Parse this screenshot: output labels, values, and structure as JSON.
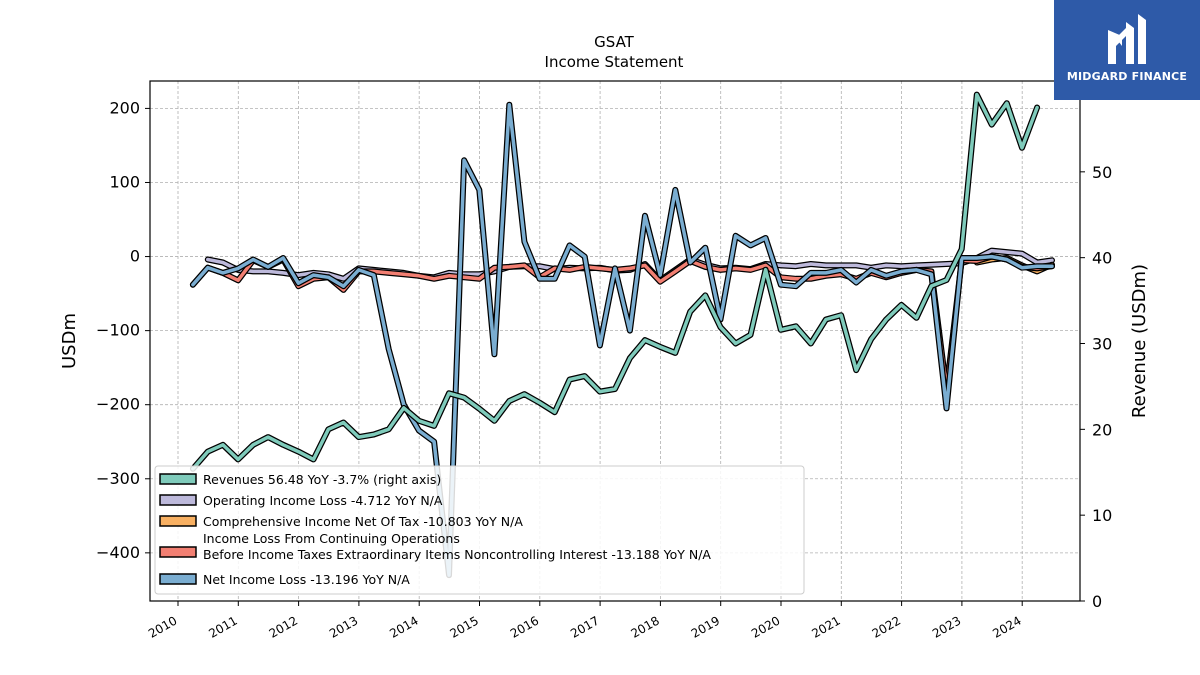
{
  "logo": {
    "text": "MIDGARD FINANCE",
    "bg": "#2e5aa8"
  },
  "chart_data": {
    "type": "line",
    "title": "GSAT",
    "subtitle": "Income Statement",
    "ylabel": "USDm",
    "ylabel_right": "Revenue (USDm)",
    "ylim": [
      -465,
      237
    ],
    "ylim_right": [
      0,
      60
    ],
    "x_ticks": [
      "2010",
      "2011",
      "2012",
      "2013",
      "2014",
      "2015",
      "2016",
      "2017",
      "2018",
      "2019",
      "2020",
      "2021",
      "2022",
      "2023",
      "2024"
    ],
    "y_ticks": [
      -400,
      -300,
      -200,
      -100,
      0,
      100,
      200
    ],
    "y_ticks_right": [
      0,
      10,
      20,
      30,
      40,
      50
    ],
    "grid": true,
    "legend_position": "lower-left",
    "series": [
      {
        "name": "Revenues  56.48 YoY -3.7% (right axis)",
        "axis": "right",
        "color": "#7fcbbb",
        "points": [
          [
            "2010-03-31",
            15.4
          ],
          [
            "2010-06-30",
            17.4
          ],
          [
            "2010-09-30",
            18.2
          ],
          [
            "2010-12-31",
            16.5
          ],
          [
            "2011-03-31",
            18.2
          ],
          [
            "2011-06-30",
            19.1
          ],
          [
            "2011-09-30",
            18.2
          ],
          [
            "2011-12-31",
            17.4
          ],
          [
            "2012-03-31",
            16.5
          ],
          [
            "2012-06-30",
            20.0
          ],
          [
            "2012-09-30",
            20.8
          ],
          [
            "2012-12-31",
            19.1
          ],
          [
            "2013-03-31",
            19.4
          ],
          [
            "2013-06-30",
            20.0
          ],
          [
            "2013-09-30",
            22.5
          ],
          [
            "2013-12-31",
            21.0
          ],
          [
            "2014-03-31",
            20.4
          ],
          [
            "2014-06-30",
            24.2
          ],
          [
            "2014-09-30",
            23.7
          ],
          [
            "2014-12-31",
            22.4
          ],
          [
            "2015-03-31",
            21.0
          ],
          [
            "2015-06-30",
            23.3
          ],
          [
            "2015-09-30",
            24.1
          ],
          [
            "2015-12-31",
            23.1
          ],
          [
            "2016-03-31",
            22.0
          ],
          [
            "2016-06-30",
            25.8
          ],
          [
            "2016-09-30",
            26.2
          ],
          [
            "2016-12-31",
            24.4
          ],
          [
            "2017-03-31",
            24.7
          ],
          [
            "2017-06-30",
            28.3
          ],
          [
            "2017-09-30",
            30.4
          ],
          [
            "2017-12-31",
            29.6
          ],
          [
            "2018-03-31",
            28.9
          ],
          [
            "2018-06-30",
            33.7
          ],
          [
            "2018-09-30",
            35.6
          ],
          [
            "2018-12-31",
            31.9
          ],
          [
            "2019-03-31",
            30.0
          ],
          [
            "2019-06-30",
            31.0
          ],
          [
            "2019-09-30",
            38.6
          ],
          [
            "2019-12-31",
            31.6
          ],
          [
            "2020-03-31",
            32.0
          ],
          [
            "2020-06-30",
            30.0
          ],
          [
            "2020-09-30",
            32.8
          ],
          [
            "2020-12-31",
            33.3
          ],
          [
            "2021-03-31",
            26.9
          ],
          [
            "2021-06-30",
            30.5
          ],
          [
            "2021-09-30",
            32.8
          ],
          [
            "2021-12-31",
            34.5
          ],
          [
            "2022-03-31",
            33.0
          ],
          [
            "2022-06-30",
            36.7
          ],
          [
            "2022-09-30",
            37.4
          ],
          [
            "2022-12-31",
            41.0
          ],
          [
            "2023-03-31",
            59.0
          ],
          [
            "2023-06-30",
            55.5
          ],
          [
            "2023-09-30",
            58.0
          ],
          [
            "2023-12-31",
            52.8
          ],
          [
            "2024-03-31",
            57.5
          ]
        ]
      },
      {
        "name": "Operating Income Loss  -4.712 YoY N/A",
        "axis": "left",
        "color": "#bdb9db",
        "points": [
          [
            "2010-06-30",
            -4
          ],
          [
            "2010-09-30",
            -8
          ],
          [
            "2010-12-31",
            -18
          ],
          [
            "2011-03-31",
            -20
          ],
          [
            "2011-06-30",
            -20
          ],
          [
            "2011-09-30",
            -22
          ],
          [
            "2011-12-31",
            -25
          ],
          [
            "2012-03-31",
            -22
          ],
          [
            "2012-06-30",
            -24
          ],
          [
            "2012-09-30",
            -30
          ],
          [
            "2012-12-31",
            -16
          ],
          [
            "2013-03-31",
            -18
          ],
          [
            "2013-06-30",
            -20
          ],
          [
            "2013-09-30",
            -22
          ],
          [
            "2013-12-31",
            -26
          ],
          [
            "2014-03-31",
            -28
          ],
          [
            "2014-06-30",
            -22
          ],
          [
            "2014-09-30",
            -24
          ],
          [
            "2014-12-31",
            -24
          ],
          [
            "2015-03-31",
            -20
          ],
          [
            "2015-06-30",
            -14
          ],
          [
            "2015-09-30",
            -13
          ],
          [
            "2015-12-31",
            -13
          ],
          [
            "2016-03-31",
            -17
          ],
          [
            "2016-06-30",
            -15
          ],
          [
            "2016-09-30",
            -16
          ],
          [
            "2016-12-31",
            -15
          ],
          [
            "2017-03-31",
            -19
          ],
          [
            "2017-06-30",
            -18
          ],
          [
            "2017-09-30",
            -10
          ],
          [
            "2017-12-31",
            -32
          ],
          [
            "2018-03-31",
            -18
          ],
          [
            "2018-06-30",
            -4
          ],
          [
            "2018-09-30",
            -11
          ],
          [
            "2018-12-31",
            -16
          ],
          [
            "2019-03-31",
            -15
          ],
          [
            "2019-06-30",
            -17
          ],
          [
            "2019-09-30",
            -10
          ],
          [
            "2019-12-31",
            -12
          ],
          [
            "2020-03-31",
            -13
          ],
          [
            "2020-06-30",
            -10
          ],
          [
            "2020-09-30",
            -12
          ],
          [
            "2020-12-31",
            -12
          ],
          [
            "2021-03-31",
            -12
          ],
          [
            "2021-06-30",
            -15
          ],
          [
            "2021-09-30",
            -12
          ],
          [
            "2021-12-31",
            -13
          ],
          [
            "2022-03-31",
            -12
          ],
          [
            "2022-06-30",
            -11
          ],
          [
            "2022-09-30",
            -10
          ],
          [
            "2022-12-31",
            -9
          ],
          [
            "2023-03-31",
            -2
          ],
          [
            "2023-06-30",
            8
          ],
          [
            "2023-09-30",
            6
          ],
          [
            "2023-12-31",
            4
          ],
          [
            "2024-03-31",
            -8
          ],
          [
            "2024-06-30",
            -5
          ]
        ]
      },
      {
        "name": "Comprehensive Income Net Of Tax  -10.803 YoY N/A",
        "axis": "left",
        "color": "#f8b062",
        "points": [
          [
            "2023-03-31",
            -8
          ],
          [
            "2023-06-30",
            -4
          ],
          [
            "2023-09-30",
            -2
          ],
          [
            "2023-12-31",
            -12
          ],
          [
            "2024-03-31",
            -20
          ],
          [
            "2024-06-30",
            -11
          ]
        ]
      },
      {
        "name": "Income Loss From Continuing Operations\nBefore Income Taxes Extraordinary Items Noncontrolling Interest  -13.188 YoY N/A",
        "axis": "left",
        "color": "#f27f72",
        "points": [
          [
            "2010-03-31",
            -38
          ],
          [
            "2010-06-30",
            -15
          ],
          [
            "2010-09-30",
            -22
          ],
          [
            "2010-12-31",
            -32
          ],
          [
            "2011-03-31",
            -5
          ],
          [
            "2011-06-30",
            -14
          ],
          [
            "2011-09-30",
            -4
          ],
          [
            "2011-12-31",
            -40
          ],
          [
            "2012-03-31",
            -30
          ],
          [
            "2012-06-30",
            -28
          ],
          [
            "2012-09-30",
            -45
          ],
          [
            "2012-12-31",
            -20
          ],
          [
            "2013-03-31",
            -20
          ],
          [
            "2013-06-30",
            -22
          ],
          [
            "2013-09-30",
            -24
          ],
          [
            "2013-12-31",
            -26
          ],
          [
            "2014-03-31",
            -30
          ],
          [
            "2014-06-30",
            -26
          ],
          [
            "2014-09-30",
            -28
          ],
          [
            "2014-12-31",
            -30
          ],
          [
            "2015-03-31",
            -15
          ],
          [
            "2015-06-30",
            -14
          ],
          [
            "2015-09-30",
            -12
          ],
          [
            "2015-12-31",
            -28
          ],
          [
            "2016-03-31",
            -16
          ],
          [
            "2016-06-30",
            -18
          ],
          [
            "2016-09-30",
            -14
          ],
          [
            "2016-12-31",
            -16
          ],
          [
            "2017-03-31",
            -18
          ],
          [
            "2017-06-30",
            -16
          ],
          [
            "2017-09-30",
            -12
          ],
          [
            "2017-12-31",
            -34
          ],
          [
            "2018-03-31",
            -20
          ],
          [
            "2018-06-30",
            -6
          ],
          [
            "2018-09-30",
            -14
          ],
          [
            "2018-12-31",
            -18
          ],
          [
            "2019-03-31",
            -16
          ],
          [
            "2019-06-30",
            -18
          ],
          [
            "2019-09-30",
            -12
          ],
          [
            "2019-12-31",
            -28
          ],
          [
            "2020-03-31",
            -30
          ],
          [
            "2020-06-30",
            -30
          ],
          [
            "2020-09-30",
            -26
          ],
          [
            "2020-12-31",
            -24
          ],
          [
            "2021-03-31",
            -30
          ],
          [
            "2021-06-30",
            -22
          ],
          [
            "2021-09-30",
            -28
          ],
          [
            "2021-12-31",
            -22
          ],
          [
            "2022-03-31",
            -18
          ],
          [
            "2022-06-30",
            -20
          ],
          [
            "2022-09-30",
            -180
          ],
          [
            "2022-12-31",
            -5
          ],
          [
            "2023-03-31",
            -6
          ],
          [
            "2023-06-30",
            0
          ],
          [
            "2023-09-30",
            -4
          ],
          [
            "2023-12-31",
            -14
          ],
          [
            "2024-03-31",
            -16
          ],
          [
            "2024-06-30",
            -13
          ]
        ]
      },
      {
        "name": "Net Income Loss  -13.196 YoY N/A",
        "axis": "left",
        "color": "#7aadd1",
        "points": [
          [
            "2010-03-31",
            -38
          ],
          [
            "2010-06-30",
            -15
          ],
          [
            "2010-09-30",
            -22
          ],
          [
            "2010-12-31",
            -16
          ],
          [
            "2011-03-31",
            -4
          ],
          [
            "2011-06-30",
            -14
          ],
          [
            "2011-09-30",
            -2
          ],
          [
            "2011-12-31",
            -36
          ],
          [
            "2012-03-31",
            -25
          ],
          [
            "2012-06-30",
            -28
          ],
          [
            "2012-09-30",
            -40
          ],
          [
            "2012-12-31",
            -18
          ],
          [
            "2013-03-31",
            -25
          ],
          [
            "2013-06-30",
            -125
          ],
          [
            "2013-09-30",
            -200
          ],
          [
            "2013-12-31",
            -235
          ],
          [
            "2014-03-31",
            -250
          ],
          [
            "2014-06-30",
            -430
          ],
          [
            "2014-09-30",
            130
          ],
          [
            "2014-12-31",
            90
          ],
          [
            "2015-03-31",
            -132
          ],
          [
            "2015-06-30",
            205
          ],
          [
            "2015-09-30",
            20
          ],
          [
            "2015-12-31",
            -30
          ],
          [
            "2016-03-31",
            -30
          ],
          [
            "2016-06-30",
            15
          ],
          [
            "2016-09-30",
            0
          ],
          [
            "2016-12-31",
            -120
          ],
          [
            "2017-03-31",
            -16
          ],
          [
            "2017-06-30",
            -100
          ],
          [
            "2017-09-30",
            55
          ],
          [
            "2017-12-31",
            -25
          ],
          [
            "2018-03-31",
            90
          ],
          [
            "2018-06-30",
            -8
          ],
          [
            "2018-09-30",
            12
          ],
          [
            "2018-12-31",
            -85
          ],
          [
            "2019-03-31",
            28
          ],
          [
            "2019-06-30",
            15
          ],
          [
            "2019-09-30",
            25
          ],
          [
            "2019-12-31",
            -38
          ],
          [
            "2020-03-31",
            -40
          ],
          [
            "2020-06-30",
            -22
          ],
          [
            "2020-09-30",
            -22
          ],
          [
            "2020-12-31",
            -18
          ],
          [
            "2021-03-31",
            -35
          ],
          [
            "2021-06-30",
            -18
          ],
          [
            "2021-09-30",
            -26
          ],
          [
            "2021-12-31",
            -20
          ],
          [
            "2022-03-31",
            -18
          ],
          [
            "2022-06-30",
            -24
          ],
          [
            "2022-09-30",
            -205
          ],
          [
            "2022-12-31",
            -2
          ],
          [
            "2023-03-31",
            -2
          ],
          [
            "2023-06-30",
            0
          ],
          [
            "2023-09-30",
            -4
          ],
          [
            "2023-12-31",
            -15
          ],
          [
            "2024-03-31",
            -13
          ],
          [
            "2024-06-30",
            -13
          ]
        ]
      }
    ]
  }
}
